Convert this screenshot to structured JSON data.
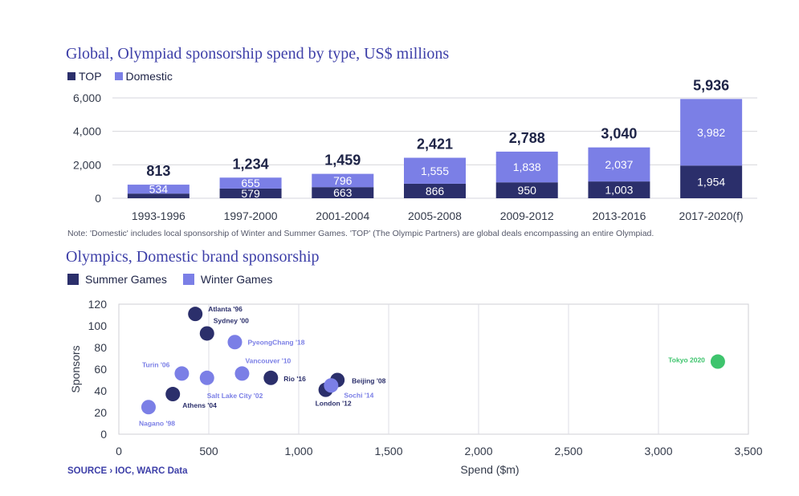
{
  "chart_data": [
    {
      "type": "bar",
      "title": "Global, Olympiad sponsorship spend by type, US$ millions",
      "stacked": true,
      "categories": [
        "1993-1996",
        "1997-2000",
        "2001-2004",
        "2005-2008",
        "2009-2012",
        "2013-2016",
        "2017-2020(f)"
      ],
      "series": [
        {
          "name": "TOP",
          "color": "#2b2f6b",
          "values": [
            279,
            579,
            663,
            866,
            950,
            1003,
            1954
          ],
          "labels": [
            "",
            "579",
            "663",
            "866",
            "950",
            "1,003",
            "1,954"
          ]
        },
        {
          "name": "Domestic",
          "color": "#7b7fe6",
          "values": [
            534,
            655,
            796,
            1555,
            1838,
            2037,
            3982
          ],
          "labels": [
            "534",
            "655",
            "796",
            "1,555",
            "1,838",
            "2,037",
            "3,982"
          ]
        }
      ],
      "totals": [
        "813",
        "1,234",
        "1,459",
        "2,421",
        "2,788",
        "3,040",
        "5,936"
      ],
      "yticks": [
        "0",
        "2,000",
        "4,000",
        "6,000"
      ],
      "ylim": [
        0,
        6000
      ],
      "legend_position": "top-left",
      "grid": true,
      "note": "Note: 'Domestic' includes local sponsorship of Winter and Summer Games. 'TOP' (The Olympic Partners) are global deals encompassing an entire Olympiad."
    },
    {
      "type": "scatter",
      "title": "Olympics, Domestic brand sponsorship",
      "xlabel": "Spend ($m)",
      "ylabel": "Sponsors",
      "xlim": [
        0,
        3500
      ],
      "ylim": [
        0,
        120
      ],
      "xticks": [
        "0",
        "500",
        "1,000",
        "1,500",
        "2,000",
        "2,500",
        "3,000",
        "3,500"
      ],
      "yticks": [
        "0",
        "20",
        "40",
        "60",
        "80",
        "100",
        "120"
      ],
      "grid": true,
      "legend_position": "top-left",
      "series": [
        {
          "name": "Summer Games",
          "color": "#2b2f6b",
          "points": [
            {
              "label": "Atlanta '96",
              "x": 425,
              "y": 111
            },
            {
              "label": "Sydney '00",
              "x": 490,
              "y": 93
            },
            {
              "label": "Athens '04",
              "x": 300,
              "y": 37
            },
            {
              "label": "Rio '16",
              "x": 845,
              "y": 52
            },
            {
              "label": "Beijing '08",
              "x": 1215,
              "y": 50
            },
            {
              "label": "London '12",
              "x": 1150,
              "y": 41
            }
          ]
        },
        {
          "name": "Winter Games",
          "color": "#7b7fe6",
          "points": [
            {
              "label": "PyeongChang '18",
              "x": 645,
              "y": 85
            },
            {
              "label": "Vancouver '10",
              "x": 685,
              "y": 56
            },
            {
              "label": "Turin '06",
              "x": 350,
              "y": 56
            },
            {
              "label": "Salt Lake City '02",
              "x": 490,
              "y": 52
            },
            {
              "label": "Sochi '14",
              "x": 1180,
              "y": 45
            },
            {
              "label": "Nagano '98",
              "x": 165,
              "y": 25
            }
          ]
        },
        {
          "name": "",
          "color": "#3ec46d",
          "points": [
            {
              "label": "Tokyo 2020",
              "x": 3330,
              "y": 67
            }
          ]
        }
      ],
      "source": "SOURCE › IOC, WARC Data"
    }
  ]
}
